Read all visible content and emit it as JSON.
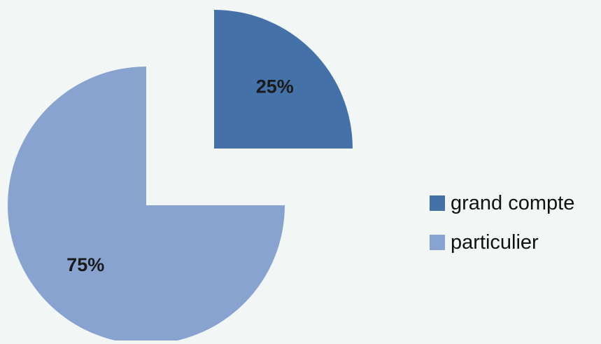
{
  "chart_data": {
    "type": "pie",
    "title": "",
    "start_angle_deg": 0,
    "exploded": true,
    "slices": [
      {
        "label": "grand compte",
        "value": 25,
        "display": "25%",
        "color": "#4472a8"
      },
      {
        "label": "particulier",
        "value": 75,
        "display": "75%",
        "color": "#88a3cf"
      }
    ],
    "legend": {
      "position": "right",
      "items": [
        {
          "label": "grand compte",
          "color": "#4472a8"
        },
        {
          "label": "particulier",
          "color": "#88a3cf"
        }
      ]
    }
  }
}
